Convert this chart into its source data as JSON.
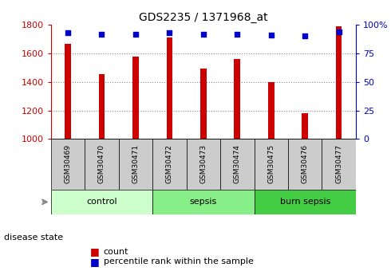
{
  "title": "GDS2235 / 1371968_at",
  "samples": [
    "GSM30469",
    "GSM30470",
    "GSM30471",
    "GSM30472",
    "GSM30473",
    "GSM30474",
    "GSM30475",
    "GSM30476",
    "GSM30477"
  ],
  "counts": [
    1665,
    1455,
    1575,
    1710,
    1495,
    1560,
    1400,
    1180,
    1790
  ],
  "percentiles": [
    93,
    92,
    92,
    93,
    92,
    92,
    91,
    90,
    94
  ],
  "ylim_left": [
    1000,
    1800
  ],
  "yticks_left": [
    1000,
    1200,
    1400,
    1600,
    1800
  ],
  "yticks_right": [
    0,
    25,
    50,
    75,
    100
  ],
  "groups": [
    {
      "label": "control",
      "indices": [
        0,
        1,
        2
      ],
      "color": "#ccffcc"
    },
    {
      "label": "sepsis",
      "indices": [
        3,
        4,
        5
      ],
      "color": "#88ee88"
    },
    {
      "label": "burn sepsis",
      "indices": [
        6,
        7,
        8
      ],
      "color": "#44cc44"
    }
  ],
  "bar_color": "#cc0000",
  "dot_color": "#0000cc",
  "bar_width": 0.18,
  "grid_color": "#888888",
  "tick_color_left": "#cc0000",
  "tick_color_right": "#0000cc",
  "sample_box_color": "#cccccc",
  "legend_red_label": "count",
  "legend_blue_label": "percentile rank within the sample",
  "disease_state_label": "disease state"
}
